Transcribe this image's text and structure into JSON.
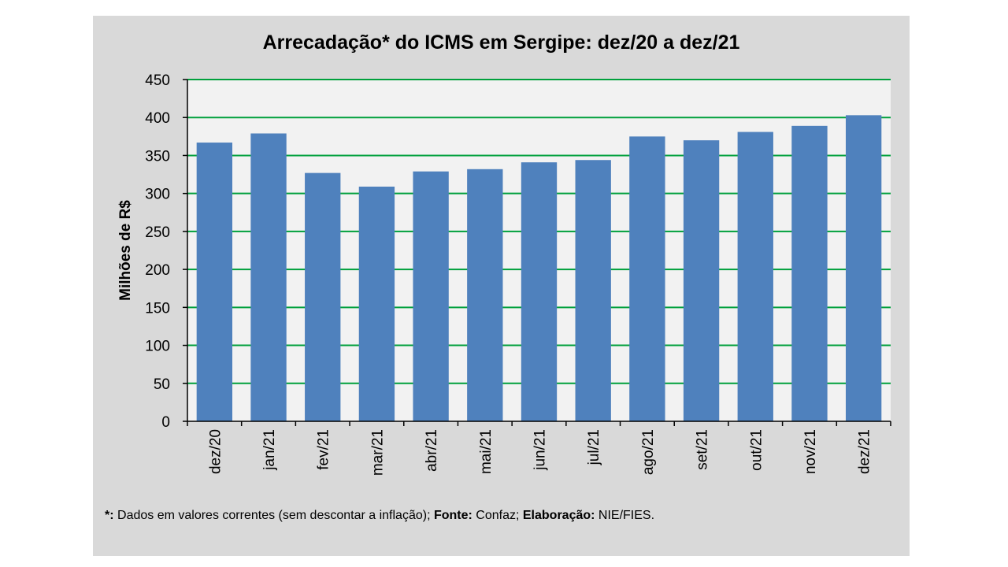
{
  "chart_data": {
    "type": "bar",
    "title": "Arrecadação* do ICMS em Sergipe: dez/20 a dez/21",
    "ylabel": "Milhões de R$",
    "xlabel": "",
    "categories": [
      "dez/20",
      "jan/21",
      "fev/21",
      "mar/21",
      "abr/21",
      "mai/21",
      "jun/21",
      "jul/21",
      "ago/21",
      "set/21",
      "out/21",
      "nov/21",
      "dez/21"
    ],
    "values": [
      367,
      379,
      327,
      309,
      329,
      332,
      341,
      344,
      375,
      370,
      381,
      389,
      403
    ],
    "ylim": [
      0,
      450
    ],
    "yticks": [
      0,
      50,
      100,
      150,
      200,
      250,
      300,
      350,
      400,
      450
    ],
    "grid": true,
    "colors": {
      "bar": "#4f81bd",
      "grid": "#00a03c",
      "plot_bg": "#f2f2f2",
      "panel_bg": "#d9d9d9"
    }
  },
  "footnote": {
    "mark": "*:",
    "text1": " Dados em valores correntes (sem descontar a inflação); ",
    "fonte_label": "Fonte:",
    "fonte_value": " Confaz; ",
    "elab_label": "Elaboração:",
    "elab_value": " NIE/FIES."
  }
}
